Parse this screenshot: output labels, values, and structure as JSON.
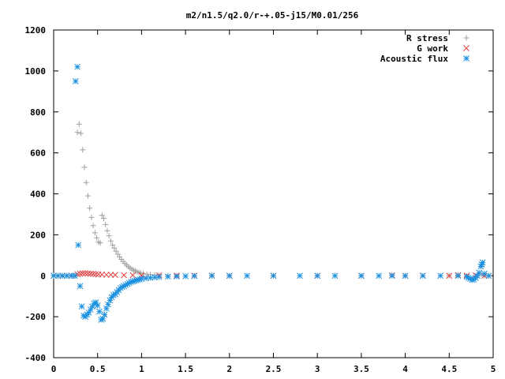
{
  "chart_data": {
    "type": "scatter",
    "title": "m2/n1.5/q2.0/r-+.05-j15/M0.01/256",
    "xlabel": "",
    "ylabel": "",
    "xlim": [
      0,
      5
    ],
    "ylim": [
      -400,
      1200
    ],
    "x_ticks": [
      "0",
      "0.5",
      "1",
      "1.5",
      "2",
      "2.5",
      "3",
      "3.5",
      "4",
      "4.5",
      "5"
    ],
    "y_ticks": [
      "-400",
      "-200",
      "0",
      "200",
      "400",
      "600",
      "800",
      "1000",
      "1200"
    ],
    "grid": false,
    "legend_position": "top-right",
    "series": [
      {
        "name": "R stress",
        "marker": "+",
        "color": "#a0a0a0",
        "points": [
          [
            0,
            0
          ],
          [
            0.05,
            0
          ],
          [
            0.1,
            0
          ],
          [
            0.15,
            0
          ],
          [
            0.2,
            0
          ],
          [
            0.25,
            0
          ],
          [
            0.27,
            700
          ],
          [
            0.29,
            740
          ],
          [
            0.31,
            695
          ],
          [
            0.33,
            615
          ],
          [
            0.35,
            530
          ],
          [
            0.37,
            455
          ],
          [
            0.39,
            390
          ],
          [
            0.41,
            330
          ],
          [
            0.43,
            285
          ],
          [
            0.45,
            245
          ],
          [
            0.47,
            210
          ],
          [
            0.49,
            185
          ],
          [
            0.51,
            165
          ],
          [
            0.53,
            160
          ],
          [
            0.55,
            295
          ],
          [
            0.57,
            280
          ],
          [
            0.59,
            250
          ],
          [
            0.61,
            220
          ],
          [
            0.63,
            195
          ],
          [
            0.65,
            170
          ],
          [
            0.67,
            150
          ],
          [
            0.69,
            135
          ],
          [
            0.71,
            120
          ],
          [
            0.73,
            105
          ],
          [
            0.75,
            92
          ],
          [
            0.77,
            80
          ],
          [
            0.79,
            70
          ],
          [
            0.81,
            60
          ],
          [
            0.83,
            52
          ],
          [
            0.85,
            44
          ],
          [
            0.87,
            38
          ],
          [
            0.89,
            32
          ],
          [
            0.91,
            27
          ],
          [
            0.93,
            23
          ],
          [
            0.95,
            19
          ],
          [
            0.97,
            16
          ],
          [
            0.99,
            13
          ],
          [
            1.02,
            10
          ],
          [
            1.06,
            8
          ],
          [
            1.1,
            6
          ],
          [
            1.15,
            4
          ],
          [
            1.2,
            3
          ],
          [
            1.3,
            2
          ],
          [
            1.4,
            1
          ],
          [
            1.6,
            0
          ],
          [
            1.8,
            0
          ],
          [
            2.0,
            0
          ],
          [
            2.5,
            0
          ],
          [
            3.0,
            0
          ],
          [
            3.5,
            0
          ],
          [
            3.85,
            5
          ],
          [
            4.0,
            0
          ],
          [
            4.5,
            0
          ],
          [
            4.6,
            3
          ],
          [
            4.7,
            0
          ],
          [
            4.8,
            -5
          ],
          [
            4.85,
            8
          ],
          [
            4.9,
            0
          ],
          [
            4.95,
            0
          ]
        ]
      },
      {
        "name": "G work",
        "marker": "x",
        "color": "#e04040",
        "points": [
          [
            0,
            0
          ],
          [
            0.1,
            0
          ],
          [
            0.2,
            0
          ],
          [
            0.27,
            8
          ],
          [
            0.3,
            10
          ],
          [
            0.33,
            12
          ],
          [
            0.36,
            12
          ],
          [
            0.39,
            11
          ],
          [
            0.42,
            10
          ],
          [
            0.45,
            9
          ],
          [
            0.48,
            8
          ],
          [
            0.51,
            7
          ],
          [
            0.55,
            6
          ],
          [
            0.6,
            5
          ],
          [
            0.65,
            5
          ],
          [
            0.7,
            4
          ],
          [
            0.8,
            3
          ],
          [
            0.9,
            3
          ],
          [
            1.0,
            2
          ],
          [
            1.2,
            2
          ],
          [
            1.4,
            1
          ],
          [
            1.6,
            1
          ],
          [
            1.8,
            1
          ],
          [
            2.0,
            0
          ],
          [
            2.5,
            0
          ],
          [
            3.0,
            0
          ],
          [
            3.5,
            0
          ],
          [
            3.85,
            2
          ],
          [
            4.0,
            0
          ],
          [
            4.2,
            1
          ],
          [
            4.5,
            0
          ],
          [
            4.6,
            3
          ],
          [
            4.7,
            1
          ],
          [
            4.8,
            2
          ],
          [
            4.9,
            0
          ]
        ]
      },
      {
        "name": "Acoustic flux",
        "marker": "*",
        "color": "#1a90e0",
        "points": [
          [
            0,
            0
          ],
          [
            0.05,
            0
          ],
          [
            0.1,
            0
          ],
          [
            0.15,
            0
          ],
          [
            0.2,
            0
          ],
          [
            0.24,
            0
          ],
          [
            0.25,
            950
          ],
          [
            0.27,
            1020
          ],
          [
            0.28,
            150
          ],
          [
            0.3,
            -50
          ],
          [
            0.32,
            -150
          ],
          [
            0.34,
            -195
          ],
          [
            0.36,
            -200
          ],
          [
            0.38,
            -190
          ],
          [
            0.4,
            -180
          ],
          [
            0.42,
            -165
          ],
          [
            0.44,
            -150
          ],
          [
            0.46,
            -135
          ],
          [
            0.48,
            -130
          ],
          [
            0.5,
            -145
          ],
          [
            0.52,
            -175
          ],
          [
            0.54,
            -215
          ],
          [
            0.56,
            -210
          ],
          [
            0.58,
            -190
          ],
          [
            0.6,
            -160
          ],
          [
            0.62,
            -140
          ],
          [
            0.64,
            -120
          ],
          [
            0.66,
            -105
          ],
          [
            0.68,
            -95
          ],
          [
            0.7,
            -90
          ],
          [
            0.72,
            -80
          ],
          [
            0.74,
            -70
          ],
          [
            0.76,
            -60
          ],
          [
            0.78,
            -55
          ],
          [
            0.8,
            -50
          ],
          [
            0.82,
            -45
          ],
          [
            0.84,
            -40
          ],
          [
            0.86,
            -35
          ],
          [
            0.88,
            -30
          ],
          [
            0.9,
            -28
          ],
          [
            0.92,
            -25
          ],
          [
            0.94,
            -22
          ],
          [
            0.96,
            -20
          ],
          [
            0.98,
            -18
          ],
          [
            1.0,
            -15
          ],
          [
            1.05,
            -12
          ],
          [
            1.1,
            -10
          ],
          [
            1.15,
            -8
          ],
          [
            1.2,
            -6
          ],
          [
            1.3,
            -4
          ],
          [
            1.4,
            -3
          ],
          [
            1.5,
            -2
          ],
          [
            1.6,
            -1
          ],
          [
            1.8,
            0
          ],
          [
            2.0,
            0
          ],
          [
            2.2,
            0
          ],
          [
            2.5,
            0
          ],
          [
            2.8,
            0
          ],
          [
            3.0,
            0
          ],
          [
            3.2,
            0
          ],
          [
            3.5,
            0
          ],
          [
            3.7,
            0
          ],
          [
            3.85,
            0
          ],
          [
            4.0,
            0
          ],
          [
            4.2,
            0
          ],
          [
            4.4,
            0
          ],
          [
            4.6,
            0
          ],
          [
            4.7,
            -5
          ],
          [
            4.72,
            -10
          ],
          [
            4.74,
            -15
          ],
          [
            4.76,
            -20
          ],
          [
            4.78,
            -18
          ],
          [
            4.8,
            -10
          ],
          [
            4.82,
            0
          ],
          [
            4.84,
            15
          ],
          [
            4.86,
            45
          ],
          [
            4.87,
            55
          ],
          [
            4.88,
            65
          ],
          [
            4.9,
            10
          ],
          [
            4.95,
            0
          ]
        ]
      }
    ]
  }
}
